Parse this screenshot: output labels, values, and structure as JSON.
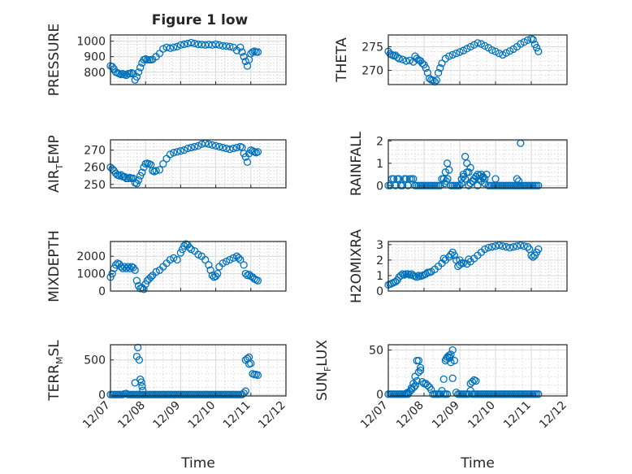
{
  "figure": {
    "title": "Figure 1 low"
  },
  "chart_data": [
    {
      "type": "scatter",
      "ylabel": "PRESSURE",
      "xlabel": "",
      "xlim": [
        0,
        5
      ],
      "ylim": [
        720,
        1040
      ],
      "yticks": [
        800,
        900,
        1000
      ],
      "yticklabels": [
        "800",
        "900",
        "1000"
      ],
      "xticklabels": [],
      "marker_color": "#0072bd",
      "x": [
        0.0,
        0.05,
        0.1,
        0.15,
        0.2,
        0.25,
        0.3,
        0.35,
        0.4,
        0.45,
        0.5,
        0.55,
        0.6,
        0.65,
        0.7,
        0.75,
        0.8,
        0.85,
        0.9,
        0.95,
        1.0,
        1.05,
        1.1,
        1.15,
        1.2,
        1.3,
        1.4,
        1.5,
        1.6,
        1.7,
        1.8,
        1.9,
        2.0,
        2.1,
        2.2,
        2.3,
        2.4,
        2.5,
        2.6,
        2.7,
        2.8,
        2.9,
        3.0,
        3.1,
        3.2,
        3.3,
        3.4,
        3.5,
        3.6,
        3.7,
        3.75,
        3.8,
        3.85,
        3.9,
        3.95,
        4.0,
        4.05,
        4.1,
        4.15,
        4.2
      ],
      "y": [
        840,
        835,
        820,
        800,
        795,
        790,
        785,
        790,
        785,
        780,
        790,
        790,
        795,
        790,
        750,
        770,
        800,
        830,
        860,
        880,
        885,
        880,
        880,
        880,
        882,
        900,
        920,
        950,
        960,
        955,
        960,
        965,
        975,
        980,
        985,
        990,
        985,
        980,
        978,
        975,
        978,
        975,
        980,
        975,
        970,
        968,
        965,
        960,
        940,
        960,
        930,
        900,
        870,
        840,
        880,
        920,
        930,
        935,
        930,
        930
      ]
    },
    {
      "type": "scatter",
      "ylabel": "THETA",
      "xlabel": "",
      "xlim": [
        0,
        5
      ],
      "ylim": [
        267,
        277.5
      ],
      "yticks": [
        270,
        275
      ],
      "yticklabels": [
        "270",
        "275"
      ],
      "xticklabels": [],
      "marker_color": "#0072bd",
      "x": [
        0.0,
        0.05,
        0.1,
        0.15,
        0.2,
        0.25,
        0.3,
        0.4,
        0.5,
        0.6,
        0.7,
        0.75,
        0.8,
        0.85,
        0.9,
        0.95,
        1.0,
        1.05,
        1.1,
        1.15,
        1.2,
        1.25,
        1.3,
        1.35,
        1.4,
        1.45,
        1.5,
        1.6,
        1.7,
        1.8,
        1.9,
        2.0,
        2.1,
        2.2,
        2.3,
        2.4,
        2.5,
        2.6,
        2.7,
        2.8,
        2.9,
        3.0,
        3.1,
        3.2,
        3.3,
        3.4,
        3.5,
        3.6,
        3.7,
        3.8,
        3.9,
        4.0,
        4.05,
        4.1,
        4.15,
        4.2
      ],
      "y": [
        274,
        273.5,
        273.3,
        273.1,
        273.2,
        272.8,
        272.5,
        272.3,
        272.0,
        272.1,
        271.8,
        273.0,
        272.5,
        272.2,
        272.0,
        271.5,
        271.2,
        270.5,
        269.5,
        268.3,
        268.0,
        267.9,
        267.6,
        267.9,
        269.5,
        270.5,
        271.5,
        272.5,
        273.0,
        273.3,
        273.6,
        273.9,
        274.2,
        274.6,
        275.0,
        275.4,
        275.8,
        275.6,
        275.2,
        274.8,
        274.3,
        274.0,
        273.6,
        273.3,
        273.7,
        274.1,
        274.5,
        275.0,
        275.6,
        276.0,
        276.4,
        276.7,
        276.5,
        275.5,
        274.8,
        274.0
      ]
    },
    {
      "type": "scatter",
      "ylabel": "AIR_TEMP",
      "xlabel": "",
      "xlim": [
        0,
        5
      ],
      "ylim": [
        248,
        276
      ],
      "yticks": [
        250,
        260,
        270
      ],
      "yticklabels": [
        "250",
        "260",
        "270"
      ],
      "xticklabels": [],
      "marker_color": "#0072bd",
      "x": [
        0.0,
        0.05,
        0.1,
        0.15,
        0.2,
        0.25,
        0.3,
        0.35,
        0.4,
        0.45,
        0.5,
        0.55,
        0.6,
        0.65,
        0.7,
        0.75,
        0.8,
        0.85,
        0.9,
        0.95,
        1.0,
        1.05,
        1.1,
        1.15,
        1.2,
        1.25,
        1.3,
        1.4,
        1.5,
        1.6,
        1.7,
        1.8,
        1.9,
        2.0,
        2.1,
        2.2,
        2.3,
        2.4,
        2.5,
        2.6,
        2.7,
        2.8,
        2.9,
        3.0,
        3.1,
        3.2,
        3.3,
        3.4,
        3.5,
        3.6,
        3.7,
        3.75,
        3.8,
        3.85,
        3.9,
        3.95,
        4.0,
        4.05,
        4.1,
        4.15,
        4.2
      ],
      "y": [
        260,
        259,
        258,
        256.5,
        255.5,
        255,
        255.5,
        254.5,
        254.5,
        253.5,
        253.5,
        254,
        253.5,
        253.5,
        251,
        250.5,
        252.5,
        255,
        257,
        260,
        262,
        262.3,
        262,
        261.5,
        258,
        257.5,
        258,
        258.5,
        262,
        265,
        267.5,
        268.5,
        269,
        269.5,
        270,
        271,
        271.5,
        272,
        272.5,
        273.5,
        274,
        273.5,
        273,
        272.5,
        272,
        271.5,
        271,
        270.5,
        271,
        271.5,
        272,
        271.5,
        268,
        266,
        263,
        268,
        270,
        269.5,
        269,
        268.5,
        269
      ]
    },
    {
      "type": "scatter",
      "ylabel": "RAINFALL",
      "xlabel": "",
      "xlim": [
        0,
        5
      ],
      "ylim": [
        -0.1,
        2.05
      ],
      "yticks": [
        0,
        1,
        2
      ],
      "yticklabels": [
        "0",
        "1",
        "2"
      ],
      "xticklabels": [],
      "marker_color": "#0072bd",
      "x": [
        0.0,
        0.05,
        0.1,
        0.15,
        0.2,
        0.25,
        0.3,
        0.35,
        0.4,
        0.45,
        0.5,
        0.55,
        0.6,
        0.65,
        0.7,
        0.75,
        0.8,
        0.85,
        0.9,
        0.95,
        1.0,
        1.05,
        1.1,
        1.15,
        1.2,
        1.25,
        1.3,
        1.35,
        1.4,
        1.45,
        1.5,
        1.55,
        1.6,
        1.65,
        1.7,
        1.75,
        1.8,
        1.85,
        1.9,
        1.95,
        2.0,
        2.05,
        2.1,
        2.15,
        2.2,
        2.25,
        2.3,
        2.35,
        2.4,
        2.45,
        2.5,
        2.55,
        2.6,
        2.65,
        2.7,
        2.75,
        2.8,
        2.85,
        2.9,
        2.95,
        3.0,
        3.05,
        3.1,
        3.15,
        3.2,
        3.25,
        3.3,
        3.35,
        3.4,
        3.45,
        3.5,
        3.55,
        3.6,
        3.65,
        3.7,
        3.75,
        3.8,
        3.85,
        3.9,
        3.95,
        4.0,
        4.05,
        4.1,
        4.15,
        4.2,
        1.58,
        1.62,
        1.66,
        2.05,
        2.1,
        2.15,
        2.2,
        2.25,
        2.3,
        2.38,
        2.45,
        2.5,
        2.55,
        2.6,
        2.65,
        2.7,
        3.0,
        3.6,
        3.7,
        3.65
      ],
      "y": [
        0,
        0,
        0.3,
        0.3,
        0,
        0.3,
        0.3,
        0,
        0,
        0.3,
        0.3,
        0,
        0.3,
        0.3,
        0.3,
        0,
        0,
        0,
        0,
        0,
        0,
        0,
        0,
        0,
        0,
        0,
        0,
        0,
        0,
        0,
        0.3,
        0.3,
        0.6,
        1.0,
        0.7,
        0,
        0,
        0,
        0,
        0,
        0,
        0.1,
        0.4,
        0.3,
        0.6,
        0,
        0.1,
        0.2,
        0.3,
        0.4,
        0,
        0.3,
        0.5,
        0.4,
        0.3,
        0.5,
        0,
        0,
        0,
        0,
        0.3,
        0,
        0,
        0,
        0,
        0,
        0,
        0,
        0,
        0,
        0,
        0,
        0,
        0,
        0,
        0,
        0,
        0,
        0,
        0,
        0,
        0,
        0,
        0,
        0,
        0.1,
        0.2,
        0.3,
        0.3,
        0.5,
        1.3,
        1.0,
        0.6,
        0.8,
        0.2,
        0.4,
        0.5,
        0.45,
        0.2,
        0.35,
        0.1,
        0.0,
        0.3,
        1.9,
        0.2
      ]
    },
    {
      "type": "scatter",
      "ylabel": "MIXDEPTH",
      "xlabel": "",
      "xlim": [
        0,
        5
      ],
      "ylim": [
        0,
        2850
      ],
      "yticks": [
        0,
        1000,
        2000
      ],
      "yticklabels": [
        "0",
        "1000",
        "2000"
      ],
      "xticklabels": [],
      "marker_color": "#0072bd",
      "x": [
        0.0,
        0.05,
        0.1,
        0.15,
        0.2,
        0.25,
        0.3,
        0.35,
        0.4,
        0.45,
        0.5,
        0.55,
        0.6,
        0.65,
        0.7,
        0.75,
        0.8,
        0.85,
        0.9,
        0.95,
        1.0,
        1.05,
        1.1,
        1.15,
        1.2,
        1.3,
        1.4,
        1.5,
        1.6,
        1.7,
        1.8,
        1.9,
        2.0,
        2.05,
        2.1,
        2.15,
        2.2,
        2.25,
        2.3,
        2.4,
        2.5,
        2.6,
        2.7,
        2.8,
        2.85,
        2.9,
        2.95,
        3.0,
        3.05,
        3.1,
        3.2,
        3.3,
        3.4,
        3.5,
        3.6,
        3.65,
        3.7,
        3.8,
        3.85,
        3.9,
        3.95,
        4.0,
        4.05,
        4.1,
        4.15,
        4.2
      ],
      "y": [
        800,
        1000,
        1300,
        1500,
        1600,
        1550,
        1400,
        1300,
        1400,
        1300,
        1400,
        1300,
        1400,
        1350,
        1200,
        600,
        300,
        150,
        200,
        100,
        400,
        600,
        700,
        800,
        900,
        1100,
        1200,
        1400,
        1600,
        1800,
        1900,
        1800,
        2200,
        2400,
        2600,
        2700,
        2650,
        2500,
        2400,
        2300,
        2100,
        2000,
        1800,
        1500,
        1200,
        900,
        800,
        850,
        1000,
        1400,
        1600,
        1700,
        1800,
        1900,
        2000,
        1900,
        1800,
        1500,
        1000,
        900,
        950,
        850,
        800,
        700,
        650,
        600
      ]
    },
    {
      "type": "scatter",
      "ylabel": "H2OMIXRA",
      "xlabel": "",
      "xlim": [
        0,
        5
      ],
      "ylim": [
        0,
        3.2
      ],
      "yticks": [
        0,
        1,
        2,
        3
      ],
      "yticklabels": [
        "0",
        "1",
        "2",
        "3"
      ],
      "xticklabels": [],
      "marker_color": "#0072bd",
      "x": [
        0.0,
        0.05,
        0.1,
        0.15,
        0.2,
        0.25,
        0.3,
        0.35,
        0.4,
        0.45,
        0.5,
        0.55,
        0.6,
        0.65,
        0.7,
        0.75,
        0.8,
        0.85,
        0.9,
        0.95,
        1.0,
        1.05,
        1.1,
        1.15,
        1.2,
        1.3,
        1.4,
        1.5,
        1.6,
        1.7,
        1.75,
        1.8,
        1.85,
        1.9,
        1.95,
        2.0,
        2.05,
        2.1,
        2.2,
        2.3,
        2.4,
        2.5,
        2.6,
        2.7,
        2.8,
        2.9,
        3.0,
        3.1,
        3.2,
        3.3,
        3.4,
        3.5,
        3.6,
        3.7,
        3.8,
        3.9,
        3.95,
        4.0,
        4.05,
        4.1,
        4.15,
        4.2,
        1.55,
        2.0,
        2.25
      ],
      "y": [
        0.4,
        0.45,
        0.5,
        0.55,
        0.6,
        0.7,
        0.9,
        1.0,
        1.1,
        1.05,
        1.1,
        1.1,
        1.05,
        1.1,
        1.0,
        0.95,
        0.9,
        1.0,
        0.95,
        1.0,
        1.05,
        1.1,
        1.2,
        1.2,
        1.25,
        1.4,
        1.6,
        1.8,
        2.0,
        2.2,
        2.35,
        2.5,
        2.3,
        2.0,
        1.6,
        1.7,
        1.8,
        1.8,
        1.75,
        1.9,
        2.1,
        2.3,
        2.5,
        2.7,
        2.8,
        2.85,
        2.9,
        2.95,
        2.9,
        2.85,
        2.8,
        2.85,
        2.9,
        2.95,
        2.9,
        2.85,
        2.7,
        2.3,
        2.2,
        2.3,
        2.5,
        2.7,
        2.1,
        2.0,
        2.05
      ]
    },
    {
      "type": "scatter",
      "ylabel": "TERR_MSL",
      "xlabel": "Time",
      "xlim": [
        0,
        5
      ],
      "ylim": [
        -20,
        720
      ],
      "yticks": [
        0,
        500
      ],
      "yticklabels": [
        "0",
        "500"
      ],
      "xticks": [
        0,
        1,
        2,
        3,
        4,
        5
      ],
      "xticklabels": [
        "12/07",
        "12/08",
        "12/09",
        "12/10",
        "12/11",
        "12/12"
      ],
      "marker_color": "#0072bd",
      "x": [
        0.0,
        0.05,
        0.1,
        0.15,
        0.2,
        0.25,
        0.3,
        0.35,
        0.4,
        0.45,
        0.5,
        0.55,
        0.6,
        0.65,
        0.7,
        0.75,
        0.8,
        0.85,
        0.9,
        0.95,
        1.0,
        1.05,
        1.1,
        1.15,
        1.2,
        1.25,
        1.3,
        1.35,
        1.4,
        1.45,
        1.5,
        1.55,
        1.6,
        1.65,
        1.7,
        1.75,
        1.8,
        1.85,
        1.9,
        1.95,
        2.0,
        2.05,
        2.1,
        2.15,
        2.2,
        2.25,
        2.3,
        2.35,
        2.4,
        2.45,
        2.5,
        2.55,
        2.6,
        2.65,
        2.7,
        2.75,
        2.8,
        2.85,
        2.9,
        2.95,
        3.0,
        3.05,
        3.1,
        3.15,
        3.2,
        3.25,
        3.3,
        3.35,
        3.4,
        3.45,
        3.5,
        3.55,
        3.6,
        3.65,
        3.7,
        3.75,
        3.8,
        3.85,
        3.9,
        3.95,
        4.0,
        4.05,
        4.1,
        4.15,
        4.2,
        0.7,
        0.75,
        0.78,
        0.82,
        0.85,
        0.88,
        0.9,
        0.92,
        3.85,
        3.9,
        3.95
      ],
      "y": [
        0,
        0,
        0,
        0,
        0,
        0,
        0,
        0,
        10,
        15,
        0,
        0,
        0,
        0,
        0,
        0,
        0,
        0,
        0,
        0,
        0,
        0,
        0,
        0,
        0,
        0,
        0,
        0,
        0,
        0,
        0,
        0,
        0,
        0,
        0,
        0,
        0,
        0,
        0,
        0,
        0,
        0,
        0,
        0,
        0,
        0,
        0,
        0,
        0,
        0,
        0,
        0,
        0,
        0,
        0,
        0,
        0,
        0,
        0,
        0,
        0,
        0,
        0,
        0,
        0,
        0,
        0,
        0,
        0,
        0,
        0,
        0,
        0,
        0,
        0,
        0,
        20,
        50,
        520,
        540,
        450,
        300,
        290,
        290,
        280,
        170,
        550,
        680,
        500,
        220,
        180,
        120,
        60,
        500,
        520,
        440
      ]
    },
    {
      "type": "scatter",
      "ylabel": "SUN_FLUX",
      "xlabel": "Time",
      "xlim": [
        0,
        5
      ],
      "ylim": [
        -2,
        56
      ],
      "yticks": [
        0,
        50
      ],
      "yticklabels": [
        "0",
        "50"
      ],
      "xticks": [
        0,
        1,
        2,
        3,
        4,
        5
      ],
      "xticklabels": [
        "12/07",
        "12/08",
        "12/09",
        "12/10",
        "12/11",
        "12/12"
      ],
      "marker_color": "#0072bd",
      "x": [
        0.0,
        0.05,
        0.1,
        0.15,
        0.2,
        0.25,
        0.3,
        0.35,
        0.4,
        0.45,
        0.5,
        0.55,
        0.6,
        0.65,
        0.7,
        0.75,
        0.8,
        0.85,
        0.9,
        0.95,
        1.0,
        1.05,
        1.1,
        1.15,
        1.2,
        1.25,
        1.3,
        1.35,
        1.4,
        1.45,
        1.5,
        1.55,
        1.6,
        1.65,
        1.7,
        1.75,
        1.8,
        1.85,
        1.9,
        1.95,
        2.0,
        2.05,
        2.1,
        2.15,
        2.2,
        2.25,
        2.3,
        2.35,
        2.4,
        2.45,
        2.5,
        2.55,
        2.6,
        2.65,
        2.7,
        2.75,
        2.8,
        2.85,
        2.9,
        2.95,
        3.0,
        3.05,
        3.1,
        3.15,
        3.2,
        3.25,
        3.3,
        3.35,
        3.4,
        3.45,
        3.5,
        3.55,
        3.6,
        3.65,
        3.7,
        3.75,
        3.8,
        3.85,
        3.9,
        3.95,
        4.0,
        4.05,
        4.1,
        4.15,
        4.2,
        0.5,
        0.55,
        0.6,
        0.65,
        0.72,
        0.76,
        0.8,
        0.85,
        0.9,
        1.55,
        1.6,
        1.62,
        1.65,
        1.7,
        1.72,
        1.75,
        1.8,
        2.3,
        2.35,
        2.4,
        2.45
      ],
      "y": [
        0,
        0,
        0,
        0,
        0,
        0,
        0,
        0,
        0,
        0,
        0,
        0,
        3,
        7,
        12,
        20,
        38,
        38,
        27,
        14,
        12,
        12,
        10,
        8,
        5,
        0,
        0,
        0,
        0,
        0,
        4,
        0,
        0,
        0,
        42,
        45,
        50,
        38,
        2,
        0,
        0,
        0,
        0,
        0,
        0,
        0,
        4,
        0,
        0,
        0,
        0,
        0,
        0,
        0,
        0,
        0,
        0,
        0,
        0,
        0,
        0,
        0,
        0,
        0,
        0,
        0,
        0,
        0,
        0,
        0,
        0,
        0,
        0,
        0,
        0,
        0,
        0,
        0,
        0,
        0,
        0,
        0,
        0,
        0,
        0,
        1,
        2,
        3,
        5,
        8,
        10,
        15,
        25,
        30,
        17,
        38,
        40,
        42,
        44,
        41,
        36,
        18,
        12,
        14,
        16,
        15
      ]
    }
  ]
}
